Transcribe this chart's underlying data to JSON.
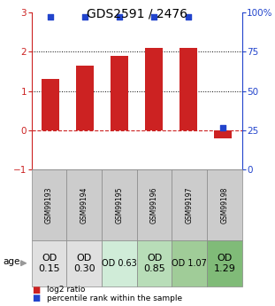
{
  "title": "GDS2591 / 2476",
  "samples": [
    "GSM99193",
    "GSM99194",
    "GSM99195",
    "GSM99196",
    "GSM99197",
    "GSM99198"
  ],
  "log2_ratios": [
    1.3,
    1.65,
    1.9,
    2.1,
    2.1,
    -0.2
  ],
  "percentile_ranks": [
    97,
    97,
    97,
    97,
    97,
    27
  ],
  "ylim_left": [
    -1,
    3
  ],
  "ylim_right": [
    0,
    100
  ],
  "yticks_left": [
    -1,
    0,
    1,
    2,
    3
  ],
  "yticks_right": [
    0,
    25,
    50,
    75,
    100
  ],
  "ytick_labels_right": [
    "0",
    "25",
    "50",
    "75",
    "100%"
  ],
  "bar_color": "#cc2222",
  "dot_color": "#2244cc",
  "hline_color": "#cc2222",
  "dotted_line_color": "#000000",
  "age_values": [
    "OD\n0.15",
    "OD\n0.30",
    "OD 0.63",
    "OD\n0.85",
    "OD 1.07",
    "OD\n1.29"
  ],
  "age_bg_colors": [
    "#e0e0e0",
    "#e0e0e0",
    "#d0ecd8",
    "#b8ddb8",
    "#a0cc98",
    "#80bb78"
  ],
  "age_font_sizes": [
    8,
    8,
    7,
    8,
    7,
    8
  ],
  "legend_red": "log2 ratio",
  "legend_blue": "percentile rank within the sample",
  "bar_width": 0.5,
  "cell_bg": "#cccccc",
  "grid_color": "#888888"
}
